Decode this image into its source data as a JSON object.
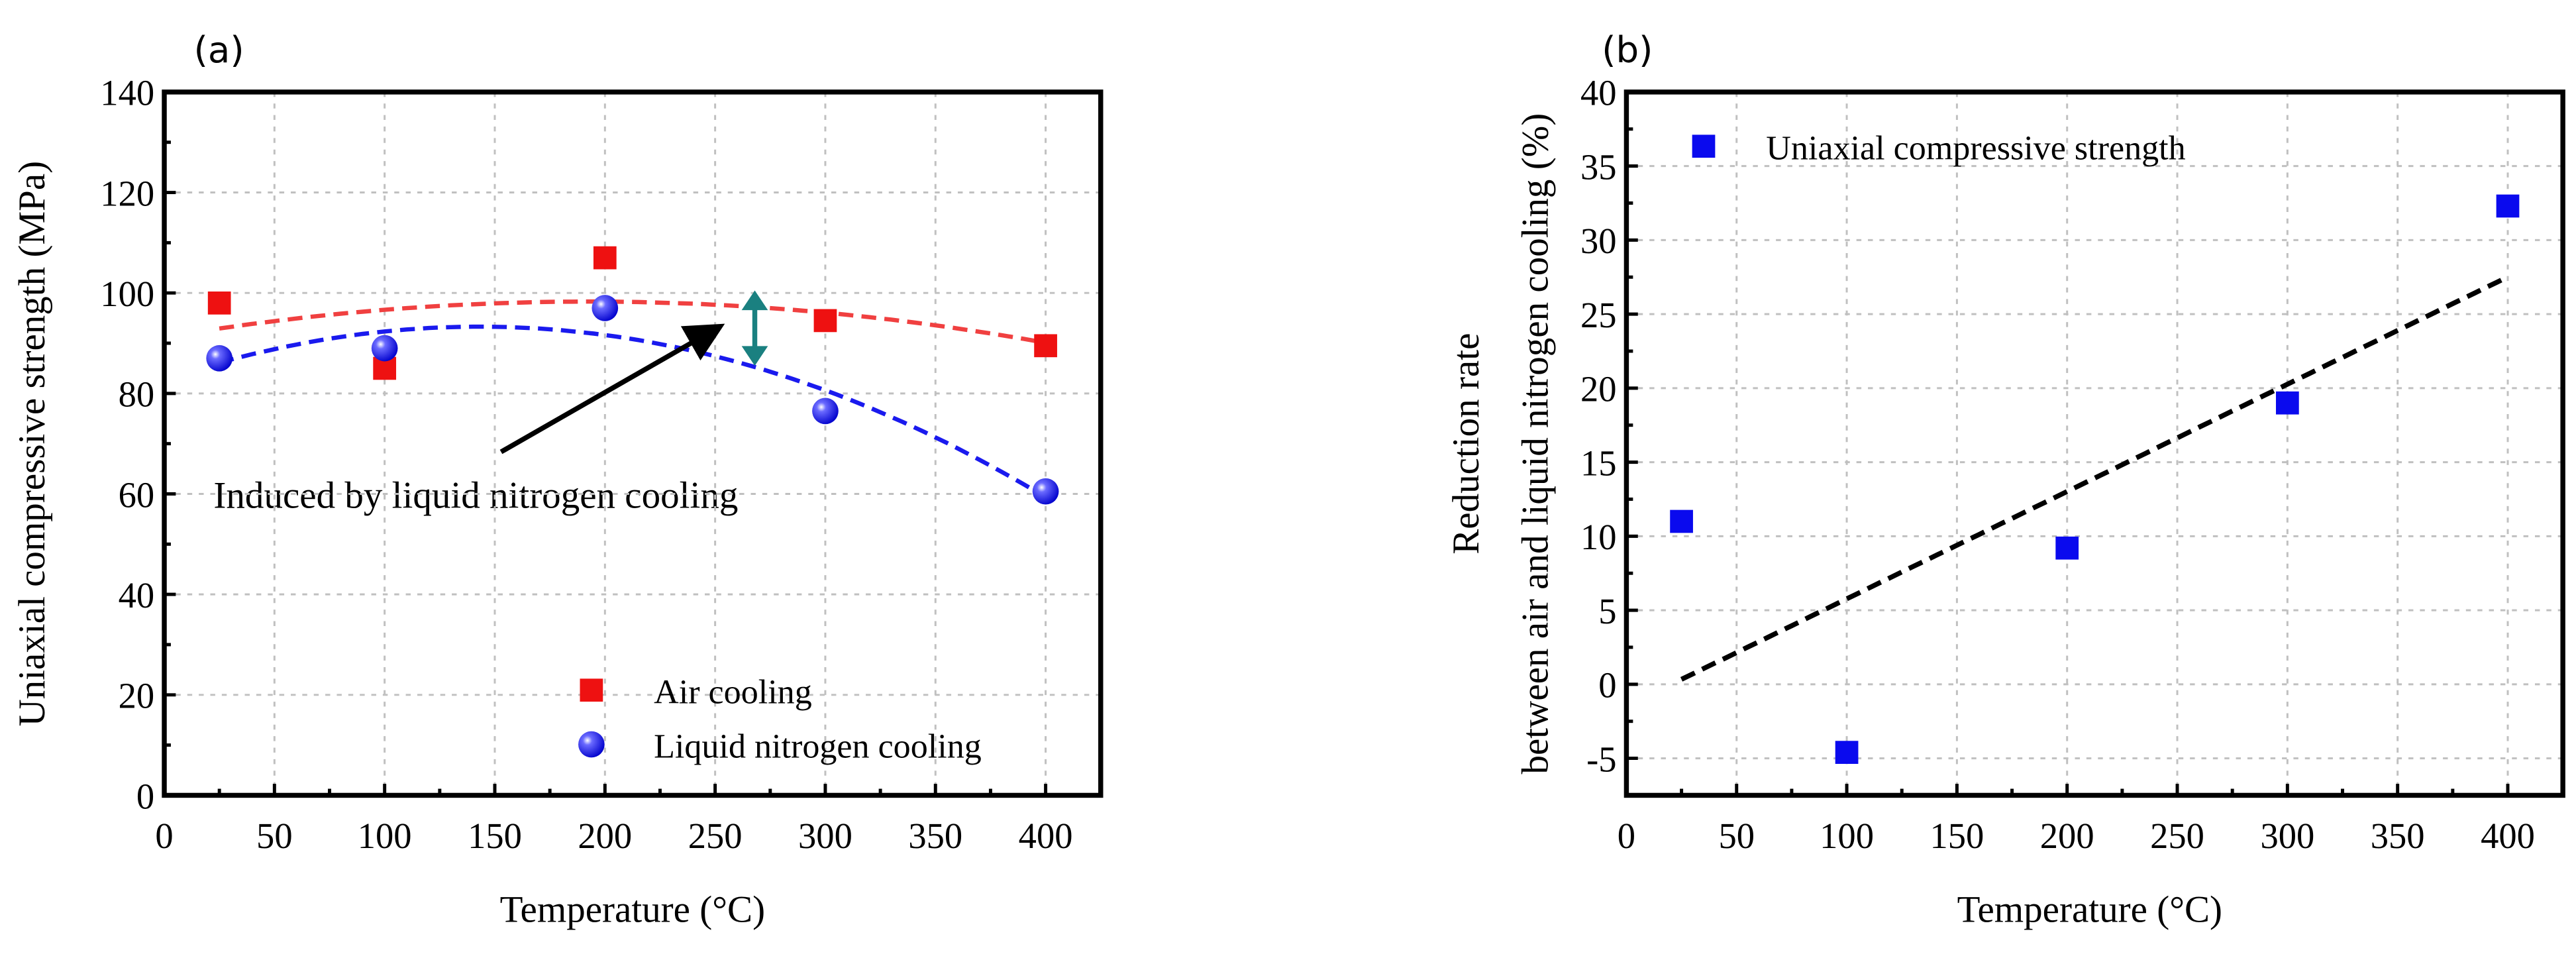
{
  "chart_data": [
    {
      "type": "scatter",
      "panel_label": "(a)",
      "xlabel": "Temperature (°C)",
      "ylabel": "Uniaxial compressive strength (MPa)",
      "xlim": [
        0,
        425
      ],
      "ylim": [
        0,
        140
      ],
      "xticks": [
        0,
        50,
        100,
        150,
        200,
        250,
        300,
        350,
        400
      ],
      "yticks": [
        0,
        20,
        40,
        60,
        80,
        100,
        120,
        140
      ],
      "grid": true,
      "legend_position": "bottom-right",
      "series": [
        {
          "name": "Air cooling",
          "marker": "square",
          "color": "#ee1111",
          "fit": "quadratic",
          "fit_color": "#f04040",
          "x": [
            25,
            100,
            200,
            300,
            400
          ],
          "y": [
            98,
            85,
            107,
            94.5,
            89.5
          ]
        },
        {
          "name": "Liquid nitrogen cooling",
          "marker": "sphere",
          "color": "#1010ee",
          "fit": "quadratic",
          "fit_color": "#1a1aee",
          "x": [
            25,
            100,
            200,
            300,
            400
          ],
          "y": [
            87,
            89,
            97,
            76.5,
            60.5
          ]
        }
      ],
      "annotation": {
        "text": "Induced by liquid nitrogen cooling",
        "arrow_color": "#000000",
        "double_arrow_color": "#1a8080"
      }
    },
    {
      "type": "scatter",
      "panel_label": "(b)",
      "xlabel": "Temperature (°C)",
      "ylabel": [
        "Reduction rate",
        "between air and liquid nitrogen cooling (%)"
      ],
      "xlim": [
        0,
        425
      ],
      "ylim": [
        -7.5,
        40
      ],
      "xticks": [
        0,
        50,
        100,
        150,
        200,
        250,
        300,
        350,
        400
      ],
      "yticks": [
        -5,
        0,
        5,
        10,
        15,
        20,
        25,
        30,
        35,
        40
      ],
      "grid": true,
      "legend_position": "top-left",
      "series": [
        {
          "name": "Uniaxial compressive strength",
          "marker": "square",
          "color": "#0a0aee",
          "fit": "linear",
          "fit_color": "#000000",
          "x": [
            25,
            100,
            200,
            300,
            400
          ],
          "y": [
            11,
            -4.6,
            9.2,
            19,
            32.3
          ]
        }
      ]
    }
  ]
}
